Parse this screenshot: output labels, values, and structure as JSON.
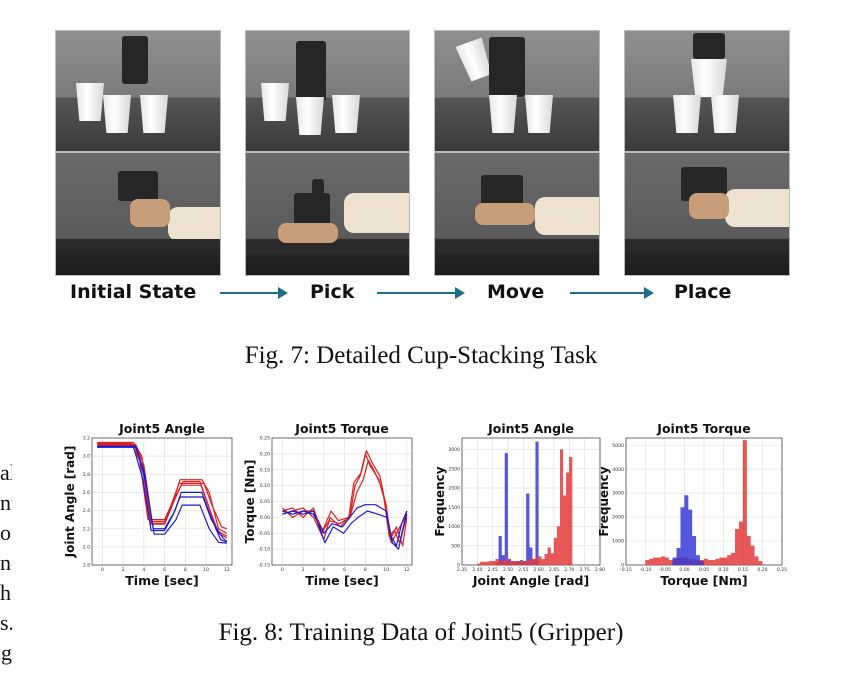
{
  "fig7": {
    "steps": [
      "Initial State",
      "Pick",
      "Move",
      "Place"
    ],
    "caption": "Fig. 7: Detailed Cup-Stacking Task"
  },
  "left_text": [
    "al",
    "nt",
    "of",
    "nd",
    "he",
    "s.",
    "g"
  ],
  "fig8": {
    "caption": "Fig. 8: Training Data of Joint5 (Gripper)",
    "colors": {
      "red": "#e11f1f",
      "blue": "#1a1ad6",
      "hist_red": "#e53b3b",
      "hist_blue": "#3a3ad8"
    }
  },
  "chart_data": [
    {
      "type": "line",
      "title": "Joint5 Angle",
      "xlabel": "Time [sec]",
      "ylabel": "Joint  Angle [rad]",
      "xlim": [
        -1,
        12.5
      ],
      "ylim": [
        1.8,
        3.2
      ],
      "xticks": [
        0,
        2,
        4,
        6,
        8,
        10,
        12
      ],
      "yticks": [
        1.8,
        2.0,
        2.2,
        2.4,
        2.6,
        2.8,
        3.0,
        3.2
      ],
      "series": [
        {
          "color": "red",
          "x": [
            -0.5,
            3,
            3.8,
            4.6,
            6,
            6.8,
            7.5,
            9.6,
            10.3,
            11.2,
            12
          ],
          "y": [
            3.15,
            3.15,
            3.0,
            2.28,
            2.28,
            2.5,
            2.74,
            2.74,
            2.6,
            2.2,
            2.15
          ]
        },
        {
          "color": "red",
          "x": [
            -0.5,
            3.2,
            4.0,
            4.8,
            6,
            7.0,
            7.8,
            9.4,
            10.1,
            11.0,
            12
          ],
          "y": [
            3.13,
            3.13,
            2.9,
            2.26,
            2.26,
            2.55,
            2.72,
            2.72,
            2.5,
            2.18,
            2.12
          ]
        },
        {
          "color": "red",
          "x": [
            -0.5,
            2.8,
            3.6,
            4.4,
            6,
            6.6,
            7.4,
            9.8,
            10.6,
            11.5,
            12
          ],
          "y": [
            3.14,
            3.14,
            2.95,
            2.3,
            2.3,
            2.45,
            2.7,
            2.7,
            2.45,
            2.22,
            2.2
          ]
        },
        {
          "color": "red",
          "x": [
            -0.5,
            3.1,
            3.9,
            4.7,
            6,
            6.9,
            7.6,
            9.5,
            10.4,
            11.2,
            12
          ],
          "y": [
            3.12,
            3.12,
            2.85,
            2.25,
            2.25,
            2.5,
            2.68,
            2.68,
            2.4,
            2.15,
            2.1
          ]
        },
        {
          "color": "blue",
          "x": [
            -0.5,
            3.2,
            4.1,
            4.9,
            6,
            7.0,
            7.6,
            9.6,
            10.4,
            11.4,
            12
          ],
          "y": [
            3.11,
            3.11,
            2.8,
            2.2,
            2.2,
            2.4,
            2.6,
            2.6,
            2.35,
            2.08,
            2.05
          ]
        },
        {
          "color": "blue",
          "x": [
            -0.5,
            3.3,
            4.2,
            5.0,
            6,
            7.1,
            7.7,
            9.4,
            10.3,
            11.2,
            12
          ],
          "y": [
            3.1,
            3.1,
            2.7,
            2.14,
            2.14,
            2.3,
            2.46,
            2.46,
            2.2,
            2.05,
            2.04
          ]
        },
        {
          "color": "blue",
          "x": [
            -0.5,
            3.0,
            3.9,
            4.7,
            6,
            6.8,
            7.5,
            9.7,
            10.5,
            11.6,
            12
          ],
          "y": [
            3.1,
            3.1,
            2.75,
            2.18,
            2.18,
            2.35,
            2.55,
            2.55,
            2.3,
            2.1,
            2.06
          ]
        }
      ]
    },
    {
      "type": "line",
      "title": "Joint5 Torque",
      "xlabel": "Time [sec]",
      "ylabel": "Torque [Nm]",
      "xlim": [
        -1,
        12.5
      ],
      "ylim": [
        -0.15,
        0.25
      ],
      "xticks": [
        0,
        2,
        4,
        6,
        8,
        10,
        12
      ],
      "yticks": [
        -0.15,
        -0.1,
        -0.05,
        0.0,
        0.05,
        0.1,
        0.15,
        0.2,
        0.25
      ],
      "series": [
        {
          "color": "red",
          "x": [
            0,
            1,
            2,
            3,
            3.8,
            4.5,
            5.5,
            6.5,
            7,
            7.5,
            8,
            8.5,
            9.3,
            9.8,
            10.3,
            10.8,
            11.3,
            12
          ],
          "y": [
            0.02,
            0.03,
            0.0,
            0.03,
            -0.05,
            -0.01,
            -0.02,
            0.0,
            0.1,
            0.13,
            0.2,
            0.16,
            0.12,
            0.06,
            -0.06,
            -0.04,
            -0.08,
            0.02
          ]
        },
        {
          "color": "red",
          "x": [
            0,
            1,
            2,
            3,
            4,
            4.6,
            5.6,
            6.6,
            7.2,
            7.8,
            8.3,
            8.8,
            9.5,
            10,
            10.5,
            11,
            11.5,
            12
          ],
          "y": [
            0.01,
            0.02,
            0.03,
            0.0,
            -0.07,
            0.0,
            -0.03,
            0.01,
            0.08,
            0.12,
            0.18,
            0.15,
            0.1,
            0.04,
            -0.08,
            -0.05,
            -0.02,
            0.01
          ]
        },
        {
          "color": "red",
          "x": [
            0,
            1,
            2,
            3,
            3.9,
            4.7,
            5.4,
            6.4,
            6.9,
            7.6,
            8.1,
            8.7,
            9.4,
            9.9,
            10.4,
            11,
            11.6,
            12
          ],
          "y": [
            0.03,
            0.0,
            0.02,
            0.02,
            -0.04,
            0.02,
            -0.01,
            0.0,
            0.11,
            0.14,
            0.21,
            0.17,
            0.13,
            0.05,
            -0.07,
            -0.03,
            -0.09,
            0.0
          ]
        },
        {
          "color": "blue",
          "x": [
            0,
            1,
            2,
            3,
            4,
            4.8,
            5.8,
            6.5,
            7.2,
            8,
            9,
            10,
            10.5,
            11,
            11.5,
            12
          ],
          "y": [
            0.02,
            0.01,
            0.02,
            0.01,
            -0.05,
            -0.02,
            -0.03,
            0.0,
            0.03,
            0.04,
            0.04,
            0.02,
            -0.06,
            -0.09,
            -0.02,
            0.02
          ]
        },
        {
          "color": "blue",
          "x": [
            0,
            1,
            2,
            3,
            4.1,
            4.9,
            5.9,
            6.6,
            7.3,
            8.2,
            9.2,
            10.1,
            10.6,
            11.2,
            11.7,
            12
          ],
          "y": [
            0.01,
            0.02,
            0.01,
            0.02,
            -0.08,
            -0.03,
            -0.05,
            -0.02,
            0.0,
            0.02,
            0.01,
            0.0,
            -0.08,
            -0.1,
            -0.03,
            0.01
          ]
        }
      ]
    },
    {
      "type": "bar",
      "title": "Joint5 Angle",
      "xlabel": "Joint Angle [rad]",
      "ylabel": "Frequency",
      "xlim": [
        2.35,
        2.8
      ],
      "ylim": [
        0,
        3300
      ],
      "xticks": [
        2.35,
        2.4,
        2.45,
        2.5,
        2.55,
        2.6,
        2.65,
        2.7,
        2.75,
        2.8
      ],
      "yticks": [
        0,
        500,
        1000,
        1500,
        2000,
        2500,
        3000
      ],
      "bin_width": 0.01,
      "series": [
        {
          "color": "blue",
          "x": [
            2.46,
            2.47,
            2.48,
            2.49,
            2.5,
            2.51,
            2.52,
            2.53,
            2.54,
            2.55,
            2.56,
            2.57,
            2.58,
            2.59
          ],
          "values": [
            50,
            750,
            250,
            2900,
            150,
            100,
            80,
            100,
            120,
            100,
            1850,
            450,
            150,
            3200
          ]
        },
        {
          "color": "red",
          "x": [
            2.4,
            2.41,
            2.42,
            2.43,
            2.44,
            2.45,
            2.46,
            2.47,
            2.48,
            2.49,
            2.5,
            2.51,
            2.52,
            2.53,
            2.54,
            2.55,
            2.56,
            2.57,
            2.58,
            2.59,
            2.6,
            2.61,
            2.62,
            2.63,
            2.64,
            2.65,
            2.66,
            2.67,
            2.68,
            2.69,
            2.7,
            2.71,
            2.72
          ],
          "values": [
            30,
            80,
            80,
            80,
            100,
            100,
            150,
            100,
            100,
            150,
            100,
            100,
            100,
            80,
            100,
            100,
            100,
            150,
            150,
            200,
            220,
            150,
            280,
            450,
            300,
            700,
            1000,
            3000,
            1800,
            2400,
            2800,
            0,
            0
          ]
        }
      ]
    },
    {
      "type": "bar",
      "title": "Joint5 Torque",
      "xlabel": "Torque [Nm]",
      "ylabel": "Frequency",
      "xlim": [
        -0.15,
        0.25
      ],
      "ylim": [
        0,
        5300
      ],
      "xticks": [
        -0.15,
        -0.1,
        -0.05,
        0.0,
        0.05,
        0.1,
        0.15,
        0.2,
        0.25
      ],
      "yticks": [
        0,
        1000,
        2000,
        3000,
        4000,
        5000
      ],
      "bin_width": 0.01,
      "series": [
        {
          "color": "red",
          "x": [
            -0.1,
            -0.09,
            -0.08,
            -0.07,
            -0.06,
            -0.05,
            -0.04,
            -0.03,
            -0.02,
            -0.01,
            0.0,
            0.01,
            0.02,
            0.03,
            0.04,
            0.05,
            0.06,
            0.07,
            0.08,
            0.09,
            0.1,
            0.11,
            0.12,
            0.13,
            0.14,
            0.15,
            0.16,
            0.17,
            0.18,
            0.19
          ],
          "values": [
            200,
            250,
            300,
            300,
            350,
            300,
            200,
            250,
            300,
            300,
            300,
            250,
            250,
            200,
            200,
            250,
            200,
            200,
            250,
            300,
            300,
            400,
            500,
            1500,
            1800,
            5200,
            1200,
            800,
            350,
            150
          ]
        },
        {
          "color": "blue",
          "x": [
            -0.03,
            -0.02,
            -0.01,
            0.0,
            0.01,
            0.02,
            0.03,
            0.04
          ],
          "values": [
            300,
            700,
            2400,
            2900,
            2300,
            1200,
            400,
            150
          ]
        }
      ]
    }
  ]
}
